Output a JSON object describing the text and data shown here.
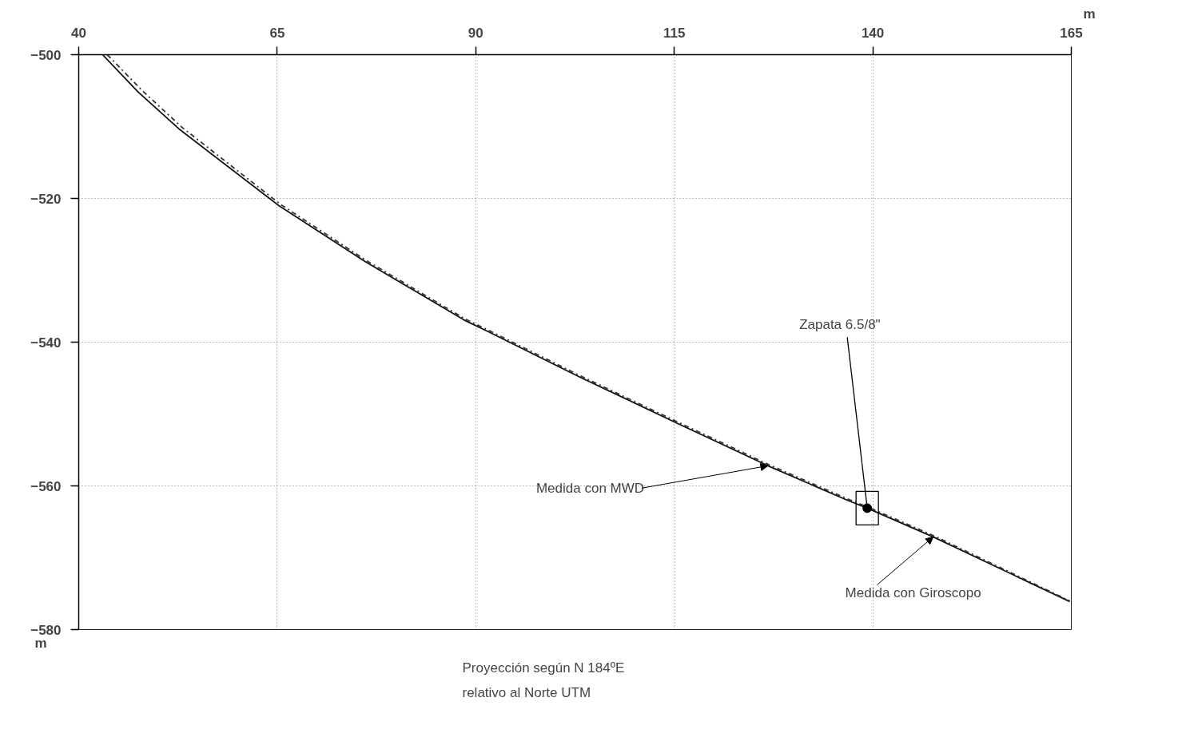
{
  "chart_data": {
    "type": "line",
    "xlabel": "m",
    "ylabel": "m",
    "xlim": [
      40,
      165
    ],
    "xticks": [
      40,
      65,
      90,
      115,
      140,
      165
    ],
    "ylim": [
      -580,
      -500
    ],
    "yticks": [
      -580,
      -560,
      -540,
      -520,
      -500
    ],
    "grid": true,
    "marker": "none",
    "series": [
      {
        "color": "#111111",
        "line_style": "solid",
        "x": [
          43.0,
          47.5,
          52.6,
          65.2,
          76.1,
          88.5,
          91.5,
          103,
          115.4,
          126.8,
          136.8,
          139.3,
          147.6,
          164.8
        ],
        "values": [
          -500,
          -505.2,
          -510.3,
          -521.0,
          -528.8,
          -536.9,
          -538.5,
          -544.8,
          -551.3,
          -557.2,
          -562.0,
          -563.1,
          -567.1,
          -576.1
        ]
      },
      {
        "color": "#333333",
        "line_style": "dashed",
        "x": [
          43.6,
          48.0,
          53.0,
          65.5,
          76.3,
          88.7,
          91.7,
          103.2,
          115.6,
          127.0,
          137.0,
          139.5,
          147.8,
          164.8
        ],
        "values": [
          -500,
          -505.0,
          -510.1,
          -520.9,
          -528.7,
          -536.8,
          -538.4,
          -544.7,
          -551.2,
          -557.1,
          -561.9,
          -563.0,
          -567.0,
          -576.0
        ]
      },
      {
        "type": "scatter",
        "color": "#000000",
        "marker": "circle",
        "x": [
          139.3
        ],
        "values": [
          -563.1
        ]
      }
    ],
    "annotations": [
      {
        "text": "Medida con MWD",
        "x": 126.8,
        "y": -557.2
      },
      {
        "text": "Medida con Giroscopo",
        "x": 147.6,
        "y": -567.1
      },
      {
        "text": "Zapata 6.5/8\"",
        "x": 139.3,
        "y": -563.1
      },
      "Proyección según N 184ºE\nrelativo al Norte UTM"
    ]
  }
}
